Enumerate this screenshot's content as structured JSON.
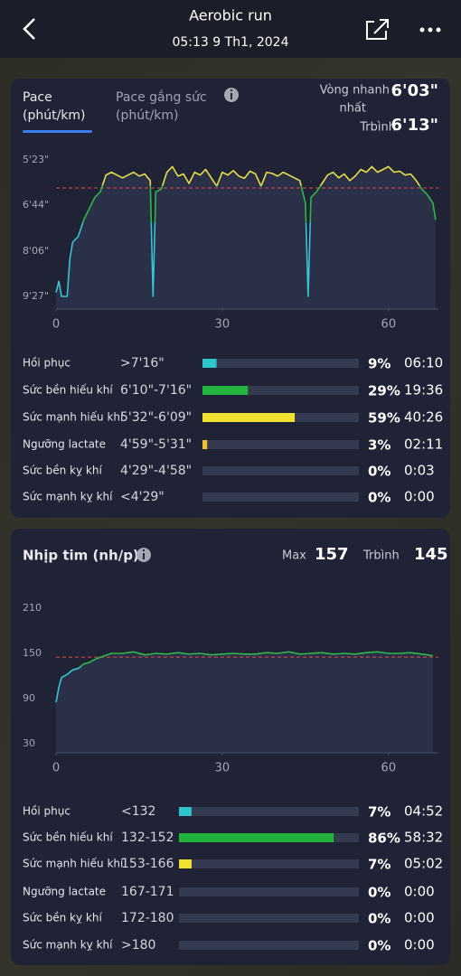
{
  "header": {
    "title": "Aerobic run",
    "subtitle": "05:13 9 Th1, 2024"
  },
  "pace": {
    "tab_active": {
      "title": "Pace",
      "unit": "(phút/km)"
    },
    "tab_inactive": {
      "title": "Pace gắng sức",
      "unit": "(phút/km)"
    },
    "fastest_label": [
      "Vòng nhanh",
      "nhất"
    ],
    "fastest_value": "6'03\"",
    "avg_label": "Trbình",
    "avg_value": "6'13\"",
    "chart": {
      "type": "line",
      "line_colors": [
        "#e6df48",
        "#2fb84a",
        "#35c6d0"
      ],
      "avg_line": 373,
      "avg_color": "#e04848",
      "xlim": [
        0,
        69
      ],
      "xticks": [
        0,
        30,
        60
      ],
      "ylim": [
        567,
        323
      ],
      "yticks": [
        {
          "value": 323,
          "label": "5'23\""
        },
        {
          "value": 404,
          "label": "6'44\""
        },
        {
          "value": 486,
          "label": "8'06\""
        },
        {
          "value": 567,
          "label": "9'27\""
        }
      ],
      "x": [
        0,
        0.5,
        1,
        2,
        2.5,
        3,
        4,
        5,
        6,
        7,
        8,
        9,
        10,
        11,
        12,
        13,
        14,
        15,
        16,
        17,
        17.5,
        18,
        19,
        20,
        21,
        22,
        23,
        24,
        25,
        26,
        27,
        28,
        29,
        30,
        31,
        32,
        33,
        34,
        35,
        36,
        37,
        38,
        39,
        40,
        41,
        42,
        43,
        44,
        45,
        45.5,
        46,
        47,
        48,
        49,
        50,
        51,
        52,
        53,
        54,
        55,
        56,
        57,
        58,
        59,
        60,
        61,
        62,
        63,
        64,
        65,
        66,
        67,
        68,
        68.5
      ],
      "values": [
        560,
        540,
        567,
        567,
        500,
        470,
        460,
        430,
        410,
        390,
        380,
        350,
        345,
        350,
        355,
        350,
        345,
        352,
        348,
        360,
        567,
        380,
        375,
        345,
        335,
        352,
        348,
        365,
        345,
        350,
        340,
        355,
        370,
        345,
        350,
        342,
        352,
        356,
        343,
        348,
        370,
        345,
        347,
        352,
        345,
        350,
        355,
        360,
        400,
        567,
        390,
        380,
        365,
        350,
        345,
        355,
        348,
        360,
        352,
        340,
        345,
        335,
        345,
        340,
        335,
        345,
        343,
        350,
        348,
        360,
        375,
        385,
        400,
        430
      ]
    },
    "zones": [
      {
        "name": "Hồi phục",
        "range": ">7'16\"",
        "percent": 9,
        "percent_label": "9%",
        "time": "06:10",
        "color": "#2ec4cc"
      },
      {
        "name": "Sức bền hiếu khí",
        "range": "6'10\"-7'16\"",
        "percent": 29,
        "percent_label": "29%",
        "time": "19:36",
        "color": "#22b43c"
      },
      {
        "name": "Sức mạnh hiếu khí",
        "range": "5'32\"-6'09\"",
        "percent": 59,
        "percent_label": "59%",
        "time": "40:26",
        "color": "#f0e030"
      },
      {
        "name": "Ngưỡng lactate",
        "range": "4'59\"-5'31\"",
        "percent": 3,
        "percent_label": "3%",
        "time": "02:11",
        "color": "#f0c030"
      },
      {
        "name": "Sức bền kỵ khí",
        "range": "4'29\"-4'58\"",
        "percent": 0,
        "percent_label": "0%",
        "time": "0:03",
        "color": "#f08030"
      },
      {
        "name": "Sức mạnh kỵ khí",
        "range": "<4'29\"",
        "percent": 0,
        "percent_label": "0%",
        "time": "0:00",
        "color": "#e04040"
      }
    ]
  },
  "heart_rate": {
    "title": "Nhịp tim (nh/p)",
    "max_label": "Max",
    "max_value": "157",
    "avg_label": "Trbình",
    "avg_value": "145",
    "chart": {
      "type": "line",
      "line_colors": [
        "#e6df48",
        "#2fb84a",
        "#35c6d0"
      ],
      "avg_line": 145,
      "avg_color": "#e04848",
      "xlim": [
        0,
        69
      ],
      "xticks": [
        0,
        30,
        60
      ],
      "ylim": [
        30,
        210
      ],
      "yticks": [
        210,
        150,
        90,
        30
      ],
      "x": [
        0,
        0.5,
        1,
        2,
        3,
        4,
        5,
        6,
        7,
        8,
        10,
        12,
        14,
        16,
        18,
        20,
        22,
        24,
        26,
        28,
        30,
        32,
        34,
        36,
        38,
        40,
        42,
        44,
        46,
        48,
        50,
        52,
        54,
        56,
        58,
        60,
        62,
        64,
        66,
        68
      ],
      "values": [
        85,
        105,
        118,
        122,
        128,
        130,
        136,
        138,
        142,
        145,
        150,
        150,
        152,
        148,
        150,
        149,
        151,
        149,
        150,
        148,
        149,
        150,
        149,
        149,
        151,
        150,
        152,
        149,
        150,
        151,
        149,
        150,
        149,
        151,
        152,
        150,
        150,
        151,
        149,
        147
      ]
    },
    "zones": [
      {
        "name": "Hồi phục",
        "range": "<132",
        "percent": 7,
        "percent_label": "7%",
        "time": "04:52",
        "color": "#2ec4cc"
      },
      {
        "name": "Sức bền hiếu khí",
        "range": "132-152",
        "percent": 86,
        "percent_label": "86%",
        "time": "58:32",
        "color": "#22b43c"
      },
      {
        "name": "Sức mạnh hiếu khí",
        "range": "153-166",
        "percent": 7,
        "percent_label": "7%",
        "time": "05:02",
        "color": "#f0e030"
      },
      {
        "name": "Ngưỡng lactate",
        "range": "167-171",
        "percent": 0,
        "percent_label": "0%",
        "time": "0:00",
        "color": "#f0c030"
      },
      {
        "name": "Sức bền kỵ khí",
        "range": "172-180",
        "percent": 0,
        "percent_label": "0%",
        "time": "0:00",
        "color": "#f08030"
      },
      {
        "name": "Sức mạnh kỵ khí",
        "range": ">180",
        "percent": 0,
        "percent_label": "0%",
        "time": "0:00",
        "color": "#e04040"
      }
    ]
  }
}
